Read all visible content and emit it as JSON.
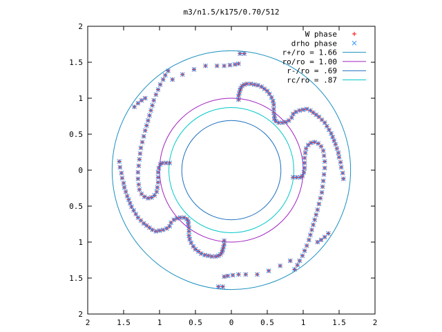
{
  "chart_data": {
    "type": "scatter",
    "title": "m3/n1.5/k175/0.70/512",
    "xlabel": "",
    "ylabel": "",
    "xlim": [
      -2,
      2
    ],
    "ylim": [
      -2,
      2
    ],
    "x_ticks": [
      {
        "value": -2,
        "label": "2"
      },
      {
        "value": -1.5,
        "label": "1.5"
      },
      {
        "value": -1,
        "label": "1"
      },
      {
        "value": -0.5,
        "label": "0.5"
      },
      {
        "value": 0,
        "label": "0"
      },
      {
        "value": 0.5,
        "label": "0.5"
      },
      {
        "value": 1,
        "label": "1"
      },
      {
        "value": 1.5,
        "label": "1.5"
      },
      {
        "value": 2,
        "label": "2"
      }
    ],
    "y_ticks": [
      {
        "value": 2,
        "label": "2"
      },
      {
        "value": 1.5,
        "label": "1.5"
      },
      {
        "value": 1,
        "label": "1"
      },
      {
        "value": 0.5,
        "label": "0.5"
      },
      {
        "value": 0,
        "label": "0"
      },
      {
        "value": -0.5,
        "label": "0.5"
      },
      {
        "value": -1,
        "label": "1"
      },
      {
        "value": -1.5,
        "label": "1.5"
      },
      {
        "value": -2,
        "label": "2"
      }
    ],
    "grid": false,
    "legend_position": "top-right",
    "legend": [
      {
        "label": "W phase",
        "kind": "points",
        "marker": "plus",
        "color": "#ff0000"
      },
      {
        "label": "drho phase",
        "kind": "points",
        "marker": "cross",
        "color": "#1e90ff"
      },
      {
        "label": "r+/ro = 1.66",
        "kind": "circle",
        "radius": 1.66,
        "color": "#1a8fbf"
      },
      {
        "label": "ro/ro = 1.00",
        "kind": "circle",
        "radius": 1.0,
        "color": "#a020c0"
      },
      {
        "label": "r-/ro = .69",
        "kind": "circle",
        "radius": 0.69,
        "color": "#1a6fbf"
      },
      {
        "label": "rc/ro = .87",
        "kind": "circle",
        "radius": 0.87,
        "color": "#00c8c8"
      }
    ],
    "series": [
      {
        "name": "W phase",
        "arms": [
          [
            [
              0.1,
              0.98
            ],
            [
              0.1,
              1.03
            ],
            [
              0.11,
              1.07
            ],
            [
              0.12,
              1.11
            ],
            [
              0.13,
              1.14
            ],
            [
              0.15,
              1.17
            ],
            [
              0.18,
              1.19
            ],
            [
              0.22,
              1.2
            ],
            [
              0.27,
              1.2
            ],
            [
              0.32,
              1.19
            ],
            [
              0.37,
              1.18
            ],
            [
              0.42,
              1.16
            ],
            [
              0.46,
              1.13
            ],
            [
              0.5,
              1.1
            ],
            [
              0.53,
              1.06
            ],
            [
              0.56,
              1.01
            ],
            [
              0.58,
              0.96
            ],
            [
              0.59,
              0.91
            ],
            [
              0.59,
              0.85
            ],
            [
              0.59,
              0.8
            ],
            [
              0.6,
              0.75
            ],
            [
              0.6,
              0.71
            ],
            [
              0.62,
              0.68
            ],
            [
              0.66,
              0.66
            ],
            [
              0.71,
              0.66
            ],
            [
              0.76,
              0.67
            ],
            [
              0.8,
              0.69
            ],
            [
              0.84,
              0.73
            ],
            [
              0.86,
              0.78
            ],
            [
              0.9,
              0.81
            ],
            [
              0.95,
              0.83
            ],
            [
              1.0,
              0.84
            ],
            [
              1.05,
              0.85
            ],
            [
              1.1,
              0.83
            ],
            [
              1.14,
              0.8
            ],
            [
              1.18,
              0.77
            ],
            [
              1.22,
              0.74
            ],
            [
              1.26,
              0.7
            ],
            [
              1.3,
              0.66
            ],
            [
              1.33,
              0.61
            ],
            [
              1.36,
              0.56
            ],
            [
              1.39,
              0.51
            ],
            [
              1.41,
              0.46
            ],
            [
              1.43,
              0.41
            ],
            [
              1.45,
              0.36
            ],
            [
              1.47,
              0.3
            ],
            [
              1.49,
              0.24
            ],
            [
              1.5,
              0.18
            ],
            [
              1.52,
              0.11
            ],
            [
              1.53,
              0.04
            ],
            [
              1.55,
              -0.04
            ],
            [
              1.56,
              -0.12
            ]
          ],
          [
            [
              -0.1,
              -0.98
            ],
            [
              -0.1,
              -1.03
            ],
            [
              -0.11,
              -1.07
            ],
            [
              -0.12,
              -1.11
            ],
            [
              -0.13,
              -1.14
            ],
            [
              -0.15,
              -1.17
            ],
            [
              -0.18,
              -1.19
            ],
            [
              -0.22,
              -1.2
            ],
            [
              -0.27,
              -1.2
            ],
            [
              -0.32,
              -1.19
            ],
            [
              -0.37,
              -1.18
            ],
            [
              -0.42,
              -1.16
            ],
            [
              -0.46,
              -1.13
            ],
            [
              -0.5,
              -1.1
            ],
            [
              -0.53,
              -1.06
            ],
            [
              -0.56,
              -1.01
            ],
            [
              -0.58,
              -0.96
            ],
            [
              -0.59,
              -0.91
            ],
            [
              -0.59,
              -0.85
            ],
            [
              -0.59,
              -0.8
            ],
            [
              -0.6,
              -0.75
            ],
            [
              -0.6,
              -0.71
            ],
            [
              -0.62,
              -0.68
            ],
            [
              -0.66,
              -0.66
            ],
            [
              -0.71,
              -0.66
            ],
            [
              -0.76,
              -0.67
            ],
            [
              -0.8,
              -0.69
            ],
            [
              -0.84,
              -0.73
            ],
            [
              -0.86,
              -0.78
            ],
            [
              -0.9,
              -0.81
            ],
            [
              -0.95,
              -0.83
            ],
            [
              -1.0,
              -0.84
            ],
            [
              -1.05,
              -0.85
            ],
            [
              -1.1,
              -0.83
            ],
            [
              -1.14,
              -0.8
            ],
            [
              -1.18,
              -0.77
            ],
            [
              -1.22,
              -0.74
            ],
            [
              -1.26,
              -0.7
            ],
            [
              -1.3,
              -0.66
            ],
            [
              -1.33,
              -0.61
            ],
            [
              -1.36,
              -0.56
            ],
            [
              -1.39,
              -0.51
            ],
            [
              -1.41,
              -0.46
            ],
            [
              -1.43,
              -0.41
            ],
            [
              -1.45,
              -0.36
            ],
            [
              -1.47,
              -0.3
            ],
            [
              -1.49,
              -0.24
            ],
            [
              -1.5,
              -0.18
            ],
            [
              -1.52,
              -0.11
            ],
            [
              -1.53,
              -0.04
            ],
            [
              -1.55,
              0.04
            ],
            [
              -1.56,
              0.12
            ]
          ],
          [
            [
              -0.86,
              0.1
            ],
            [
              -0.91,
              0.1
            ],
            [
              -0.96,
              0.1
            ],
            [
              -0.99,
              0.08
            ],
            [
              -1.01,
              0.03
            ],
            [
              -1.02,
              -0.03
            ],
            [
              -1.02,
              -0.1
            ],
            [
              -1.02,
              -0.17
            ],
            [
              -1.03,
              -0.24
            ],
            [
              -1.04,
              -0.3
            ],
            [
              -1.07,
              -0.35
            ],
            [
              -1.11,
              -0.38
            ],
            [
              -1.16,
              -0.39
            ],
            [
              -1.21,
              -0.37
            ],
            [
              -1.25,
              -0.33
            ],
            [
              -1.28,
              -0.27
            ],
            [
              -1.29,
              -0.2
            ],
            [
              -1.3,
              -0.12
            ],
            [
              -1.3,
              -0.03
            ],
            [
              -1.29,
              0.06
            ],
            [
              -1.28,
              0.15
            ],
            [
              -1.27,
              0.23
            ],
            [
              -1.26,
              0.31
            ],
            [
              -1.24,
              0.39
            ],
            [
              -1.22,
              0.47
            ],
            [
              -1.2,
              0.55
            ],
            [
              -1.18,
              0.62
            ],
            [
              -1.16,
              0.69
            ],
            [
              -1.14,
              0.76
            ],
            [
              -1.12,
              0.83
            ],
            [
              -1.1,
              0.9
            ],
            [
              -1.08,
              0.97
            ],
            [
              -1.05,
              1.05
            ],
            [
              -1.02,
              1.12
            ],
            [
              -0.99,
              1.19
            ],
            [
              -0.95,
              1.26
            ],
            [
              -0.92,
              1.32
            ],
            [
              -0.88,
              1.38
            ]
          ],
          [
            [
              0.86,
              -0.1
            ],
            [
              0.91,
              -0.1
            ],
            [
              0.96,
              -0.1
            ],
            [
              0.99,
              -0.08
            ],
            [
              1.01,
              -0.03
            ],
            [
              1.02,
              0.03
            ],
            [
              1.02,
              0.1
            ],
            [
              1.02,
              0.17
            ],
            [
              1.03,
              0.24
            ],
            [
              1.04,
              0.3
            ],
            [
              1.07,
              0.35
            ],
            [
              1.11,
              0.38
            ],
            [
              1.16,
              0.39
            ],
            [
              1.21,
              0.37
            ],
            [
              1.25,
              0.33
            ],
            [
              1.28,
              0.27
            ],
            [
              1.29,
              0.2
            ],
            [
              1.3,
              0.12
            ],
            [
              1.3,
              0.03
            ],
            [
              1.29,
              -0.06
            ],
            [
              1.28,
              -0.15
            ],
            [
              1.27,
              -0.23
            ],
            [
              1.26,
              -0.31
            ],
            [
              1.24,
              -0.39
            ],
            [
              1.22,
              -0.47
            ],
            [
              1.2,
              -0.55
            ],
            [
              1.18,
              -0.62
            ],
            [
              1.16,
              -0.69
            ],
            [
              1.14,
              -0.76
            ],
            [
              1.12,
              -0.83
            ],
            [
              1.1,
              -0.9
            ],
            [
              1.08,
              -0.97
            ],
            [
              1.05,
              -1.05
            ],
            [
              1.02,
              -1.12
            ],
            [
              0.99,
              -1.19
            ],
            [
              0.95,
              -1.26
            ],
            [
              0.92,
              -1.32
            ],
            [
              0.88,
              -1.38
            ]
          ],
          [
            [
              -0.2,
              1.45
            ],
            [
              -0.36,
              1.45
            ],
            [
              -0.52,
              1.4
            ],
            [
              -0.68,
              1.33
            ],
            [
              -0.82,
              1.26
            ],
            [
              -1.2,
              1.0
            ],
            [
              -1.25,
              0.97
            ],
            [
              -1.3,
              0.93
            ],
            [
              -1.35,
              0.88
            ]
          ],
          [
            [
              0.2,
              -1.45
            ],
            [
              0.36,
              -1.45
            ],
            [
              0.52,
              -1.4
            ],
            [
              0.68,
              -1.33
            ],
            [
              0.82,
              -1.26
            ],
            [
              1.2,
              -1.0
            ],
            [
              1.25,
              -0.97
            ],
            [
              1.3,
              -0.93
            ],
            [
              1.35,
              -0.88
            ]
          ],
          [
            [
              0.12,
              1.62
            ],
            [
              0.18,
              1.62
            ],
            [
              0.05,
              1.47
            ],
            [
              0.1,
              1.48
            ],
            [
              -0.02,
              1.46
            ],
            [
              -0.1,
              1.45
            ]
          ],
          [
            [
              -0.12,
              -1.62
            ],
            [
              -0.18,
              -1.62
            ],
            [
              -0.05,
              -1.47
            ],
            [
              -0.1,
              -1.48
            ],
            [
              0.02,
              -1.46
            ],
            [
              0.1,
              -1.45
            ]
          ]
        ]
      },
      {
        "name": "drho phase",
        "same_as": "W phase"
      }
    ]
  }
}
